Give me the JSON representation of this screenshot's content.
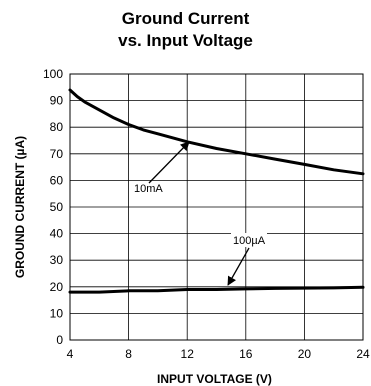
{
  "chart_data": {
    "type": "line",
    "title": "Ground Current",
    "subtitle": "vs. Input Voltage",
    "xlabel": "INPUT VOLTAGE (V)",
    "ylabel": "GROUND CURRENT (µA)",
    "xlim": [
      4,
      24
    ],
    "ylim": [
      0,
      100
    ],
    "xticks": [
      "4",
      "8",
      "12",
      "16",
      "20",
      "24"
    ],
    "yticks": [
      "0",
      "10",
      "20",
      "30",
      "40",
      "50",
      "60",
      "70",
      "80",
      "90",
      "100"
    ],
    "grid": true,
    "series": [
      {
        "name": "10mA",
        "x": [
          4,
          4.5,
          5,
          6,
          7,
          8,
          9,
          10,
          12,
          14,
          16,
          18,
          20,
          22,
          24
        ],
        "y": [
          94,
          91.5,
          89.5,
          86.5,
          83.5,
          81,
          79,
          77.5,
          74.5,
          72,
          70,
          68,
          66,
          64,
          62.5
        ]
      },
      {
        "name": "100µA",
        "x": [
          4,
          6,
          8,
          10,
          12,
          14,
          16,
          18,
          20,
          22,
          24
        ],
        "y": [
          18,
          18,
          18.5,
          18.5,
          19,
          19,
          19.2,
          19.4,
          19.5,
          19.6,
          19.8
        ]
      }
    ],
    "annotations": [
      {
        "text": "10mA",
        "series": "10mA"
      },
      {
        "text": "100µA",
        "series": "100µA"
      }
    ]
  }
}
